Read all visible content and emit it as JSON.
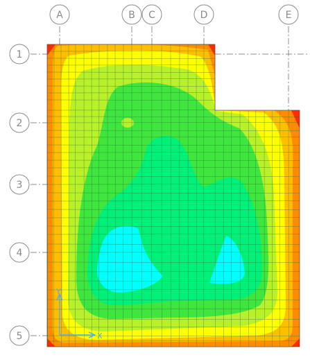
{
  "grid": {
    "columns": [
      {
        "id": "col-a",
        "label": "A"
      },
      {
        "id": "col-b",
        "label": "B"
      },
      {
        "id": "col-c",
        "label": "C"
      },
      {
        "id": "col-d",
        "label": "D"
      },
      {
        "id": "col-e",
        "label": "E"
      }
    ],
    "rows": [
      {
        "id": "row-1",
        "label": "1"
      },
      {
        "id": "row-2",
        "label": "2"
      },
      {
        "id": "row-3",
        "label": "3"
      },
      {
        "id": "row-4",
        "label": "4"
      },
      {
        "id": "row-5",
        "label": "5"
      }
    ],
    "line_color": "#8c8c8c",
    "mesh_color": "#2f6f3a"
  },
  "contour_palette": [
    "#ff2a00",
    "#ff8c00",
    "#ffbe00",
    "#ffff00",
    "#b8f02a",
    "#3ee63e",
    "#00f07a",
    "#00ffff"
  ],
  "axes_triad": {
    "x_label": "X",
    "y_label": "Y",
    "color": "#4fb0e8"
  }
}
